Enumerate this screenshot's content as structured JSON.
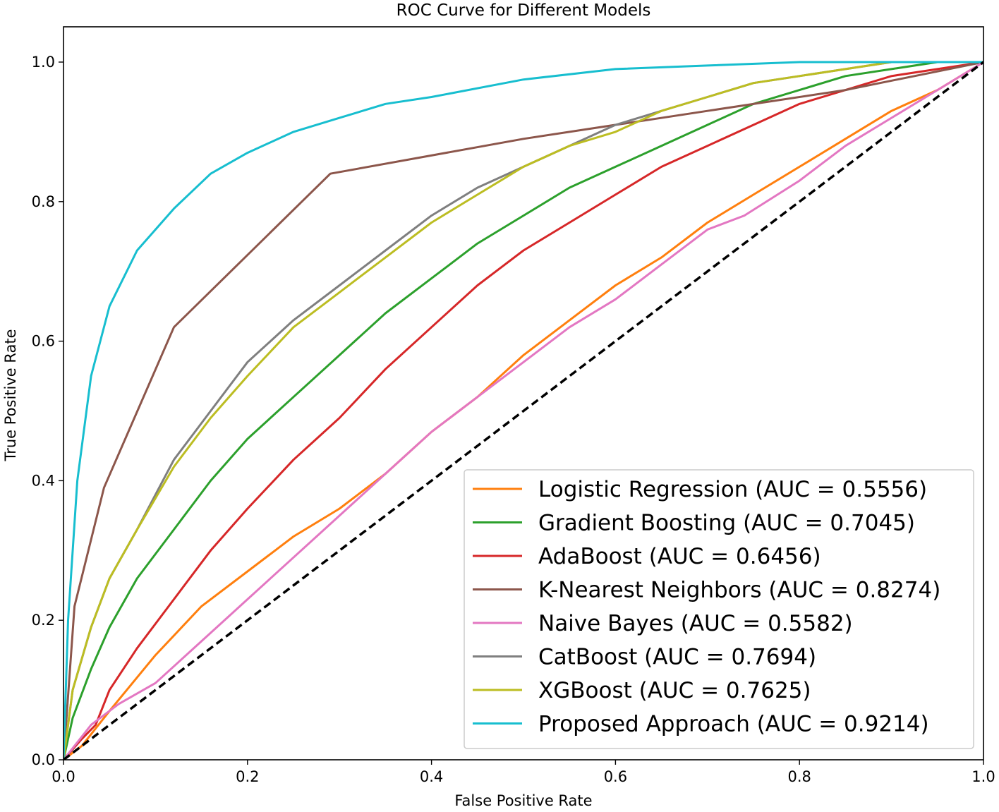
{
  "chart_data": {
    "type": "line",
    "title": "ROC Curve for Different Models",
    "xlabel": "False Positive Rate",
    "ylabel": "True Positive Rate",
    "xlim": [
      0.0,
      1.0
    ],
    "ylim": [
      0.0,
      1.0
    ],
    "xticks": [
      0.0,
      0.2,
      0.4,
      0.6,
      0.8,
      1.0
    ],
    "yticks": [
      0.0,
      0.2,
      0.4,
      0.6,
      0.8,
      1.0
    ],
    "xtick_labels": [
      "0.0",
      "0.2",
      "0.4",
      "0.6",
      "0.8",
      "1.0"
    ],
    "ytick_labels": [
      "0.0",
      "0.2",
      "0.4",
      "0.6",
      "0.8",
      "1.0"
    ],
    "grid": false,
    "legend_position": "lower-right",
    "diagonal_reference": {
      "color": "#000000",
      "style": "dashed",
      "points": [
        [
          0,
          0
        ],
        [
          1,
          1
        ]
      ]
    },
    "series": [
      {
        "name": "Logistic Regression (AUC = 0.5556)",
        "color": "#ff7f0e",
        "points": [
          [
            0,
            0
          ],
          [
            0.02,
            0.02
          ],
          [
            0.05,
            0.07
          ],
          [
            0.1,
            0.15
          ],
          [
            0.15,
            0.22
          ],
          [
            0.2,
            0.27
          ],
          [
            0.25,
            0.32
          ],
          [
            0.3,
            0.36
          ],
          [
            0.35,
            0.41
          ],
          [
            0.4,
            0.47
          ],
          [
            0.45,
            0.52
          ],
          [
            0.5,
            0.58
          ],
          [
            0.55,
            0.63
          ],
          [
            0.6,
            0.68
          ],
          [
            0.65,
            0.72
          ],
          [
            0.7,
            0.77
          ],
          [
            0.75,
            0.81
          ],
          [
            0.8,
            0.85
          ],
          [
            0.85,
            0.89
          ],
          [
            0.9,
            0.93
          ],
          [
            0.95,
            0.96
          ],
          [
            1,
            1
          ]
        ]
      },
      {
        "name": "Gradient Boosting (AUC = 0.7045)",
        "color": "#2ca02c",
        "points": [
          [
            0,
            0
          ],
          [
            0.01,
            0.06
          ],
          [
            0.03,
            0.13
          ],
          [
            0.05,
            0.19
          ],
          [
            0.08,
            0.26
          ],
          [
            0.12,
            0.33
          ],
          [
            0.16,
            0.4
          ],
          [
            0.2,
            0.46
          ],
          [
            0.25,
            0.52
          ],
          [
            0.3,
            0.58
          ],
          [
            0.35,
            0.64
          ],
          [
            0.4,
            0.69
          ],
          [
            0.45,
            0.74
          ],
          [
            0.5,
            0.78
          ],
          [
            0.55,
            0.82
          ],
          [
            0.6,
            0.85
          ],
          [
            0.65,
            0.88
          ],
          [
            0.7,
            0.91
          ],
          [
            0.75,
            0.94
          ],
          [
            0.8,
            0.96
          ],
          [
            0.85,
            0.98
          ],
          [
            0.9,
            0.99
          ],
          [
            0.95,
            1.0
          ],
          [
            1,
            1
          ]
        ]
      },
      {
        "name": "AdaBoost (AUC = 0.6456)",
        "color": "#d62728",
        "points": [
          [
            0,
            0
          ],
          [
            0.02,
            0.03
          ],
          [
            0.035,
            0.05
          ],
          [
            0.05,
            0.1
          ],
          [
            0.08,
            0.16
          ],
          [
            0.12,
            0.23
          ],
          [
            0.16,
            0.3
          ],
          [
            0.2,
            0.36
          ],
          [
            0.25,
            0.43
          ],
          [
            0.3,
            0.49
          ],
          [
            0.35,
            0.56
          ],
          [
            0.4,
            0.62
          ],
          [
            0.45,
            0.68
          ],
          [
            0.5,
            0.73
          ],
          [
            0.55,
            0.77
          ],
          [
            0.6,
            0.81
          ],
          [
            0.65,
            0.85
          ],
          [
            0.7,
            0.88
          ],
          [
            0.75,
            0.91
          ],
          [
            0.8,
            0.94
          ],
          [
            0.85,
            0.96
          ],
          [
            0.9,
            0.98
          ],
          [
            0.95,
            0.99
          ],
          [
            1,
            1
          ]
        ]
      },
      {
        "name": "K-Nearest Neighbors (AUC = 0.8274)",
        "color": "#8c564b",
        "points": [
          [
            0,
            0
          ],
          [
            0.012,
            0.22
          ],
          [
            0.044,
            0.39
          ],
          [
            0.12,
            0.62
          ],
          [
            0.29,
            0.84
          ],
          [
            0.5,
            0.89
          ],
          [
            0.7,
            0.93
          ],
          [
            0.85,
            0.96
          ],
          [
            1,
            1
          ]
        ]
      },
      {
        "name": "Naive Bayes (AUC = 0.5582)",
        "color": "#e377c2",
        "points": [
          [
            0,
            0
          ],
          [
            0.03,
            0.05
          ],
          [
            0.06,
            0.08
          ],
          [
            0.1,
            0.11
          ],
          [
            0.15,
            0.17
          ],
          [
            0.2,
            0.23
          ],
          [
            0.25,
            0.29
          ],
          [
            0.3,
            0.35
          ],
          [
            0.35,
            0.41
          ],
          [
            0.4,
            0.47
          ],
          [
            0.45,
            0.52
          ],
          [
            0.5,
            0.57
          ],
          [
            0.55,
            0.62
          ],
          [
            0.6,
            0.66
          ],
          [
            0.65,
            0.71
          ],
          [
            0.7,
            0.76
          ],
          [
            0.74,
            0.78
          ],
          [
            0.8,
            0.83
          ],
          [
            0.85,
            0.88
          ],
          [
            0.9,
            0.92
          ],
          [
            0.95,
            0.96
          ],
          [
            1,
            1
          ]
        ]
      },
      {
        "name": "CatBoost (AUC = 0.7694)",
        "color": "#7f7f7f",
        "points": [
          [
            0,
            0
          ],
          [
            0.01,
            0.1
          ],
          [
            0.03,
            0.19
          ],
          [
            0.05,
            0.26
          ],
          [
            0.08,
            0.33
          ],
          [
            0.12,
            0.43
          ],
          [
            0.16,
            0.5
          ],
          [
            0.2,
            0.57
          ],
          [
            0.25,
            0.63
          ],
          [
            0.3,
            0.68
          ],
          [
            0.35,
            0.73
          ],
          [
            0.4,
            0.78
          ],
          [
            0.45,
            0.82
          ],
          [
            0.5,
            0.85
          ],
          [
            0.55,
            0.88
          ],
          [
            0.6,
            0.91
          ],
          [
            0.65,
            0.93
          ],
          [
            0.7,
            0.95
          ],
          [
            0.75,
            0.97
          ],
          [
            0.8,
            0.98
          ],
          [
            0.85,
            0.99
          ],
          [
            0.9,
            1.0
          ],
          [
            1,
            1
          ]
        ]
      },
      {
        "name": "XGBoost (AUC = 0.7625)",
        "color": "#bcbd22",
        "points": [
          [
            0,
            0
          ],
          [
            0.01,
            0.1
          ],
          [
            0.03,
            0.19
          ],
          [
            0.05,
            0.26
          ],
          [
            0.08,
            0.33
          ],
          [
            0.12,
            0.42
          ],
          [
            0.16,
            0.49
          ],
          [
            0.2,
            0.55
          ],
          [
            0.25,
            0.62
          ],
          [
            0.3,
            0.67
          ],
          [
            0.35,
            0.72
          ],
          [
            0.4,
            0.77
          ],
          [
            0.45,
            0.81
          ],
          [
            0.5,
            0.85
          ],
          [
            0.55,
            0.88
          ],
          [
            0.6,
            0.9
          ],
          [
            0.65,
            0.93
          ],
          [
            0.7,
            0.95
          ],
          [
            0.75,
            0.97
          ],
          [
            0.8,
            0.98
          ],
          [
            0.85,
            0.99
          ],
          [
            0.9,
            1.0
          ],
          [
            1,
            1
          ]
        ]
      },
      {
        "name": "Proposed Approach (AUC = 0.9214)",
        "color": "#17becf",
        "points": [
          [
            0,
            0
          ],
          [
            0.005,
            0.2
          ],
          [
            0.015,
            0.4
          ],
          [
            0.03,
            0.55
          ],
          [
            0.05,
            0.65
          ],
          [
            0.08,
            0.73
          ],
          [
            0.12,
            0.79
          ],
          [
            0.16,
            0.84
          ],
          [
            0.2,
            0.87
          ],
          [
            0.25,
            0.9
          ],
          [
            0.3,
            0.92
          ],
          [
            0.35,
            0.94
          ],
          [
            0.4,
            0.95
          ],
          [
            0.5,
            0.975
          ],
          [
            0.6,
            0.99
          ],
          [
            0.7,
            0.995
          ],
          [
            0.8,
            1.0
          ],
          [
            1,
            1
          ]
        ]
      }
    ]
  }
}
